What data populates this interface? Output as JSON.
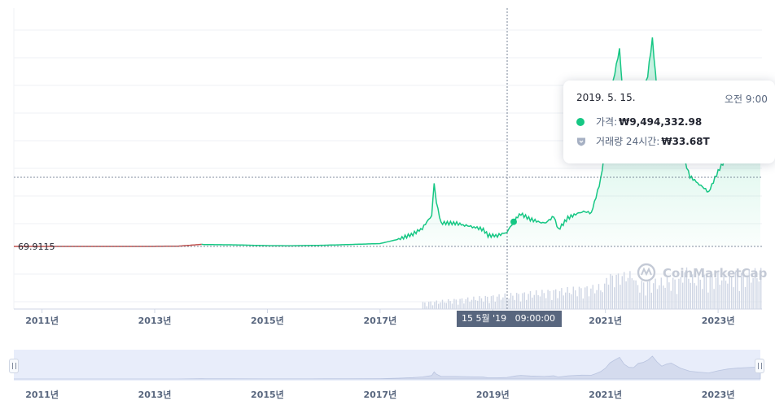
{
  "chart_data": {
    "type": "line",
    "x_range": [
      "2010-07",
      "2023-10"
    ],
    "x_ticks": [
      "2011년",
      "2013년",
      "2015년",
      "2017년",
      "2019년",
      "2021년",
      "2023년"
    ],
    "y_scale": "linear",
    "y_marker_label": "69.9115",
    "series": [
      {
        "x": [
          "2010-07",
          "2011-01",
          "2012-01",
          "2013-01",
          "2013-06",
          "2013-11",
          "2013-12",
          "2014-06",
          "2015-01",
          "2015-06",
          "2016-01",
          "2016-06",
          "2017-01",
          "2017-05",
          "2017-08",
          "2017-10",
          "2017-12-01",
          "2017-12-17",
          "2018-01",
          "2018-02",
          "2018-03",
          "2018-05",
          "2018-07",
          "2018-09",
          "2018-11",
          "2018-12",
          "2019-02",
          "2019-04",
          "2019-05-15",
          "2019-06",
          "2019-07",
          "2019-09",
          "2019-12",
          "2020-02",
          "2020-03",
          "2020-05",
          "2020-08",
          "2020-10",
          "2020-11",
          "2020-12",
          "2021-01",
          "2021-02",
          "2021-03",
          "2021-04",
          "2021-05",
          "2021-06",
          "2021-07",
          "2021-08",
          "2021-09",
          "2021-10",
          "2021-11",
          "2021-12",
          "2022-01",
          "2022-02",
          "2022-03",
          "2022-05",
          "2022-07",
          "2022-09",
          "2022-11",
          "2023-01",
          "2023-03",
          "2023-05",
          "2023-07",
          "2023-10"
        ],
        "y": [
          0,
          0,
          1000,
          12000,
          100000,
          800000,
          700000,
          600000,
          300000,
          250000,
          450000,
          700000,
          1100000,
          2800000,
          4800000,
          7000000,
          12000000,
          25000000,
          17000000,
          9000000,
          9000000,
          9000000,
          8200000,
          7500000,
          6500000,
          4200000,
          4200000,
          5500000,
          9494332.98,
          11000000,
          12500000,
          10500000,
          8800000,
          11500000,
          6500000,
          11000000,
          13500000,
          13000000,
          19000000,
          26000000,
          38000000,
          57000000,
          67000000,
          76000000,
          52000000,
          41000000,
          40000000,
          55000000,
          58000000,
          66000000,
          80000000,
          60000000,
          45000000,
          52000000,
          56000000,
          38000000,
          27000000,
          24000000,
          21000000,
          29000000,
          35000000,
          38000000,
          40000000,
          42000000
        ]
      }
    ],
    "tooltip": {
      "date": "2019. 5. 15.",
      "time": "오전 9:00",
      "price_label": "가격:",
      "price_value": "₩9,494,332.98",
      "volume_label": "거래량 24시간:",
      "volume_value": "₩33.68T"
    },
    "crosshair_x_label": "15 5월 '19",
    "crosshair_time_label": "09:00:00",
    "watermark": "CoinMarketCap",
    "colors": {
      "line": "#16c784",
      "line_early": "#c0504d",
      "volume": "#cfd6e4",
      "navigator": "#e8edfa"
    },
    "navigator_ticks": [
      "2011년",
      "2013년",
      "2015년",
      "2017년",
      "2019년",
      "2021년",
      "2023년"
    ]
  }
}
